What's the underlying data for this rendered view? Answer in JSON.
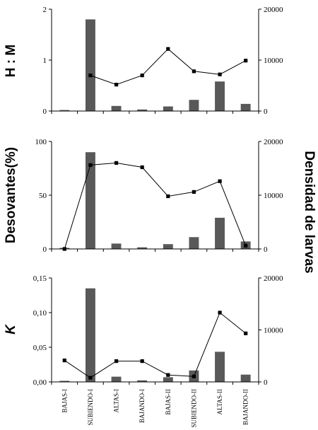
{
  "ylabels": [
    "H : M",
    "Desovantes(%)",
    "K"
  ],
  "right_ylabel": "Densidad de larvas",
  "colors": {
    "bar": "#595959",
    "line": "#000000",
    "marker": "#000000"
  },
  "chart_data": [
    {
      "type": "bar+line",
      "categories": [
        "BAJAS-I",
        "SUBIENDO-I",
        "ALTAS-I",
        "BAJANDO-I",
        "BAJAS-II",
        "SUBIENDO-II",
        "ALTAS-II",
        "BAJANDO-II"
      ],
      "ylabel": "H : M",
      "ylim": [
        0,
        2
      ],
      "yticks": [
        0,
        1,
        2
      ],
      "ytick_labels": [
        "0",
        "1",
        "2"
      ],
      "y2lim": [
        0,
        20000
      ],
      "y2ticks": [
        0,
        10000,
        20000
      ],
      "y2tick_labels": [
        "0",
        "10000",
        "20000"
      ],
      "bars_axis": "y2",
      "bars": [
        200,
        18000,
        1000,
        300,
        900,
        2200,
        5800,
        1400
      ],
      "line_axis": "y",
      "line": [
        null,
        0.7,
        0.52,
        0.7,
        1.22,
        0.78,
        0.72,
        0.99
      ]
    },
    {
      "type": "bar+line",
      "categories": [
        "BAJAS-I",
        "SUBIENDO-I",
        "ALTAS-I",
        "BAJANDO-I",
        "BAJAS-II",
        "SUBIENDO-II",
        "ALTAS-II",
        "BAJANDO-II"
      ],
      "ylabel": "Desovantes(%)",
      "ylim": [
        0,
        100
      ],
      "yticks": [
        0,
        50,
        100
      ],
      "ytick_labels": [
        "0",
        "50",
        "100"
      ],
      "y2lim": [
        0,
        20000
      ],
      "y2ticks": [
        0,
        10000,
        20000
      ],
      "y2tick_labels": [
        "0",
        "10000",
        "20000"
      ],
      "bars_axis": "y2",
      "bars": [
        200,
        18000,
        1000,
        300,
        900,
        2200,
        5800,
        1400
      ],
      "line_axis": "y",
      "line": [
        0,
        78,
        80,
        76,
        49,
        53,
        63,
        3
      ]
    },
    {
      "type": "bar+line",
      "categories": [
        "BAJAS-I",
        "SUBIENDO-I",
        "ALTAS-I",
        "BAJANDO-I",
        "BAJAS-II",
        "SUBIENDO-II",
        "ALTAS-II",
        "BAJANDO-II"
      ],
      "ylabel": "K",
      "ylim": [
        0,
        0.15
      ],
      "yticks": [
        0,
        0.05,
        0.1,
        0.15
      ],
      "ytick_labels": [
        "0,00",
        "0,05",
        "0,10",
        "0,15"
      ],
      "y2lim": [
        0,
        20000
      ],
      "y2ticks": [
        0,
        10000,
        20000
      ],
      "y2tick_labels": [
        "0",
        "10000",
        "20000"
      ],
      "bars_axis": "y2",
      "bars": [
        200,
        18000,
        1000,
        300,
        900,
        2200,
        5800,
        1400
      ],
      "line_axis": "y",
      "line": [
        0.031,
        0.006,
        0.03,
        0.03,
        0.01,
        0.008,
        0.1,
        0.07
      ]
    }
  ]
}
